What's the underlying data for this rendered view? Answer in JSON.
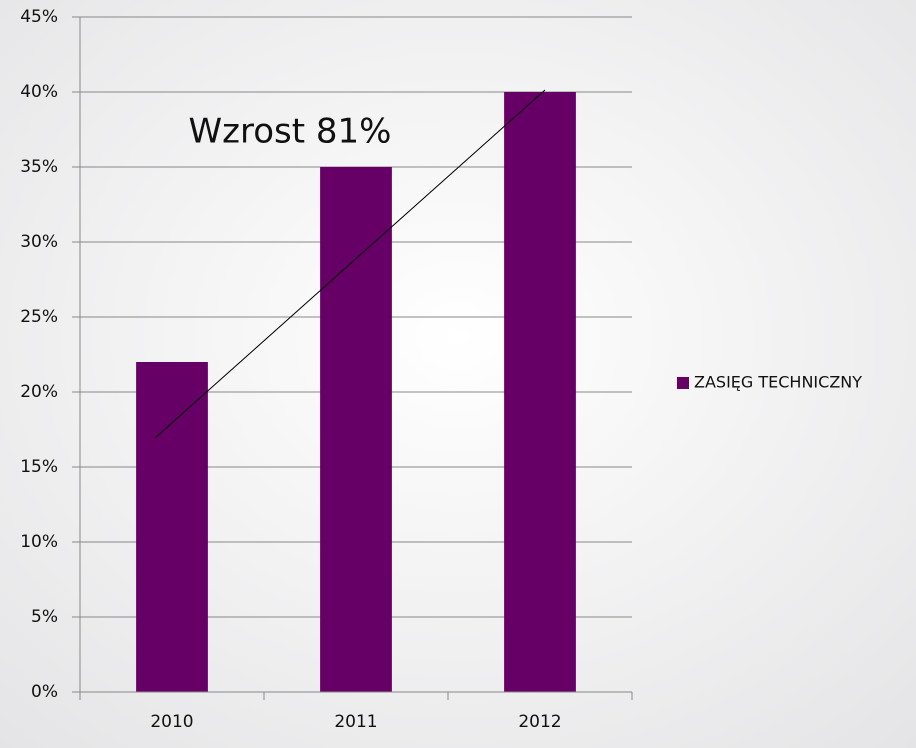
{
  "chart_data": {
    "type": "bar",
    "categories": [
      "2010",
      "2011",
      "2012"
    ],
    "series": [
      {
        "name": "ZASIĘG TECHNICZNY",
        "color": "#660066",
        "values": [
          22,
          35,
          40
        ]
      }
    ],
    "annotation": "Wzrost 81%",
    "ylim": [
      0,
      45
    ],
    "yticks": [
      {
        "value": 0,
        "label": "0%"
      },
      {
        "value": 5,
        "label": "5%"
      },
      {
        "value": 10,
        "label": "10%"
      },
      {
        "value": 15,
        "label": "15%"
      },
      {
        "value": 20,
        "label": "20%"
      },
      {
        "value": 25,
        "label": "25%"
      },
      {
        "value": 30,
        "label": "30%"
      },
      {
        "value": 35,
        "label": "35%"
      },
      {
        "value": 40,
        "label": "40%"
      },
      {
        "value": 45,
        "label": "45%"
      }
    ],
    "grid": true,
    "legend": "right"
  }
}
